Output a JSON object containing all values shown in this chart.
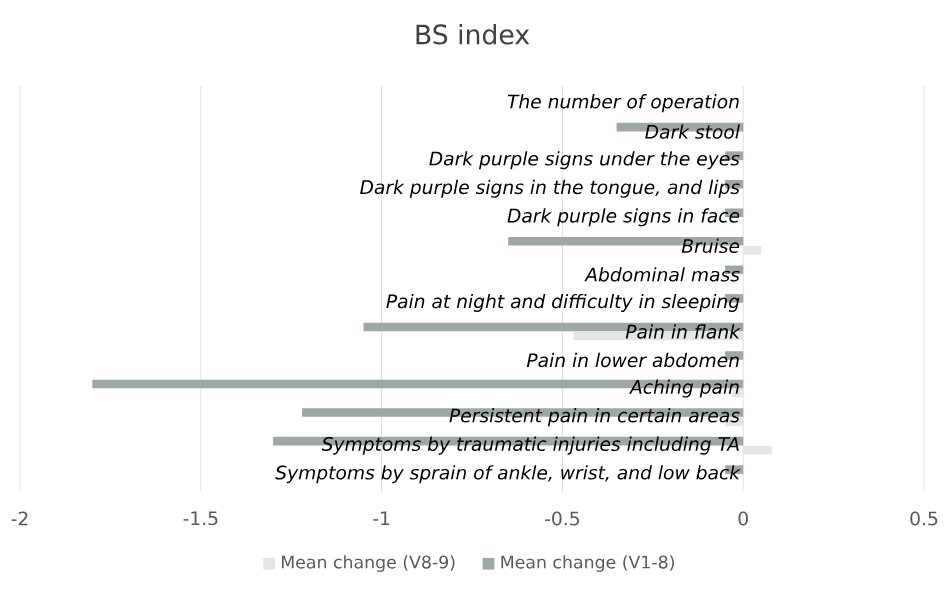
{
  "chart_data": {
    "type": "bar",
    "orientation": "horizontal",
    "title": "BS index",
    "categories": [
      "The number of operation",
      "Dark stool",
      "Dark purple signs under the eyes",
      "Dark purple signs in the tongue, and lips",
      "Dark purple signs in face",
      "Bruise",
      "Abdominal mass",
      "Pain at night and difficulty in sleeping",
      "Pain in flank",
      "Pain in lower abdomen",
      "Aching pain",
      "Persistent pain in certain areas",
      "Symptoms by traumatic injuries including TA",
      "Symptoms by sprain of ankle, wrist, and low back"
    ],
    "series": [
      {
        "name": "Mean change (V8-9)",
        "color": "#e4e6e6",
        "values": [
          0,
          0,
          0,
          0,
          0,
          0.05,
          0,
          0,
          -0.47,
          0,
          -0.03,
          -0.05,
          0.08,
          0
        ]
      },
      {
        "name": "Mean change (V1-8)",
        "color": "#9ea6a6",
        "values": [
          0,
          -0.35,
          -0.05,
          -0.05,
          -0.05,
          -0.65,
          -0.05,
          -0.05,
          -1.05,
          -0.05,
          -1.8,
          -1.22,
          -1.3,
          -0.05
        ]
      }
    ],
    "xlim": [
      -2,
      0.5
    ],
    "xticks": [
      -2,
      -1.5,
      -1,
      -0.5,
      0,
      0.5
    ],
    "grid": "x",
    "legend": "bottom"
  }
}
